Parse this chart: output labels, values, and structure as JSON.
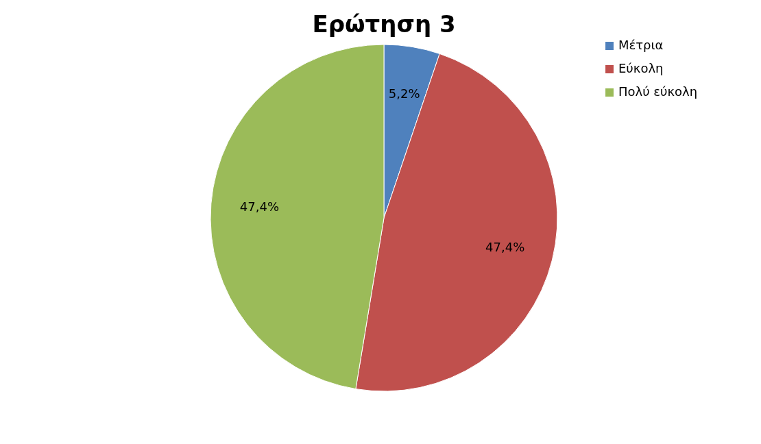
{
  "chart_data": {
    "type": "pie",
    "title": "Ερώτηση 3",
    "categories": [
      "Μέτρια",
      "Εύκολη",
      "Πολύ εύκολη"
    ],
    "values": [
      5.2,
      47.4,
      47.4
    ],
    "colors": [
      "#4f81bd",
      "#c0504d",
      "#9bbb59"
    ],
    "value_labels": [
      "5,2%",
      "47,4%",
      "47,4%"
    ],
    "legend": "right"
  }
}
